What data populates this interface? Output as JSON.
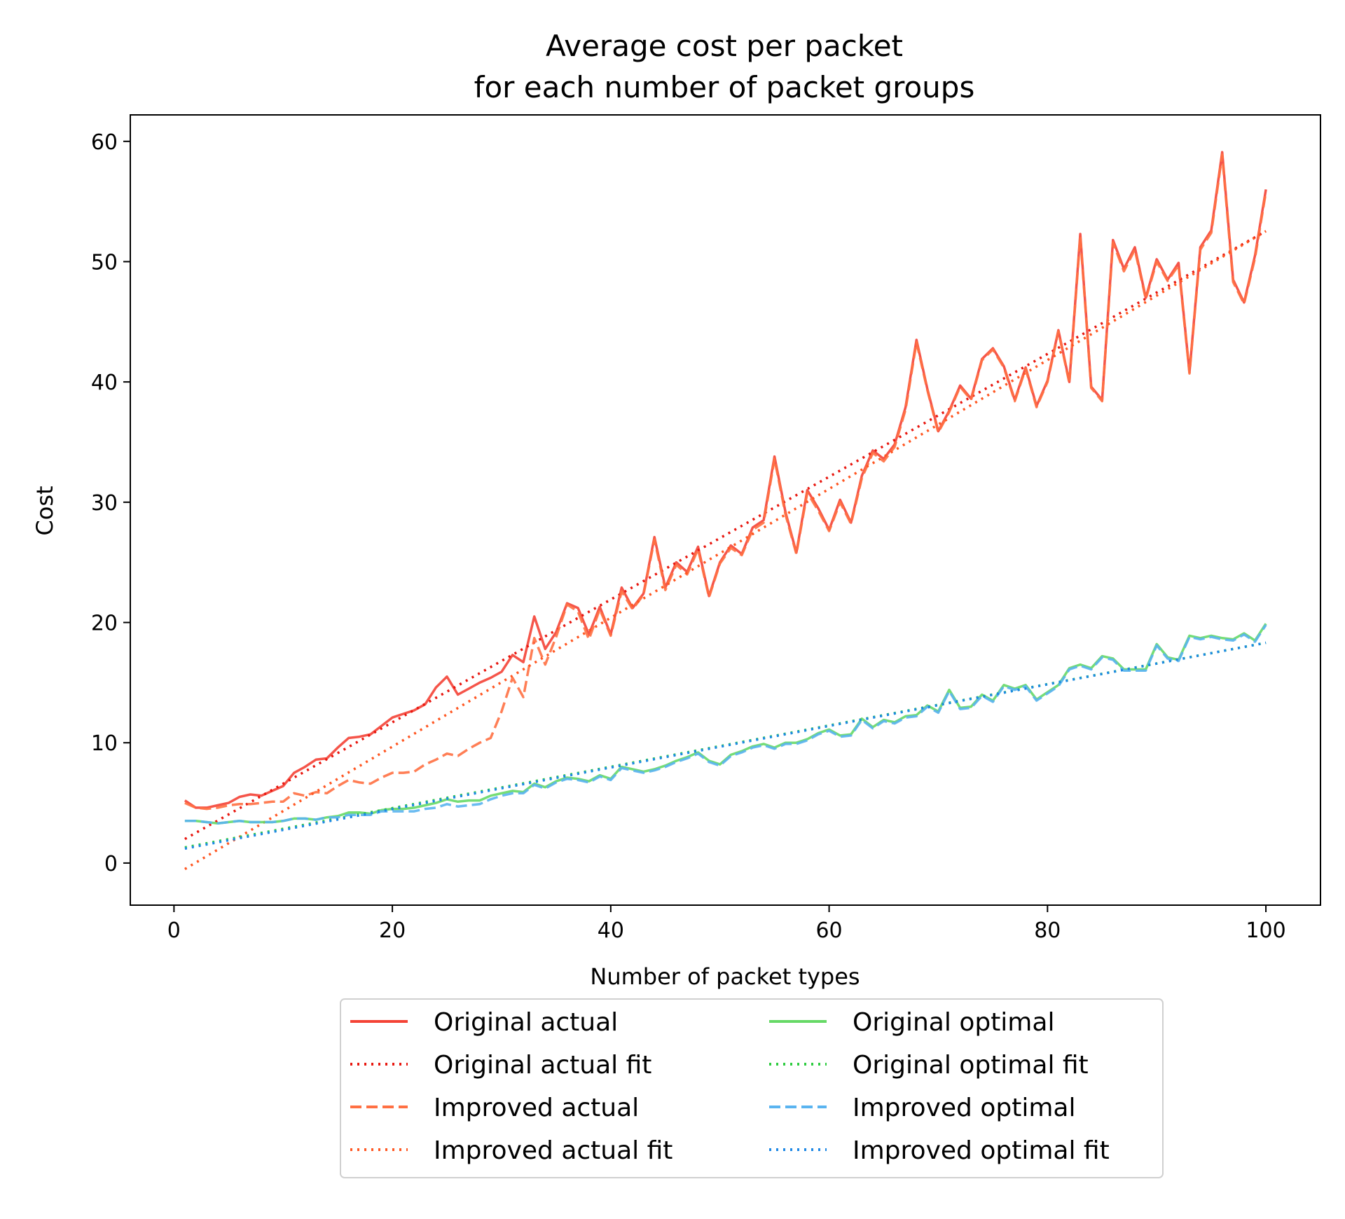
{
  "chart_data": {
    "type": "line",
    "title": [
      "Average cost per packet",
      "for each number of packet groups"
    ],
    "xlabel": "Number of packet types",
    "ylabel": "Cost",
    "xlim": [
      -4,
      105
    ],
    "ylim": [
      -3.5,
      62.2
    ],
    "xticks": [
      0,
      20,
      40,
      60,
      80,
      100
    ],
    "yticks": [
      0,
      10,
      20,
      30,
      40,
      50,
      60
    ],
    "grid": false,
    "legend_placement": "below the plot, two columns",
    "x_start": 1,
    "x_step": 1,
    "series": [
      {
        "name": "Original actual",
        "color": "#f44336",
        "dash": "solid",
        "values": [
          5.2,
          4.6,
          4.6,
          4.8,
          5.0,
          5.5,
          5.7,
          5.6,
          6.0,
          6.4,
          7.5,
          8.0,
          8.6,
          8.7,
          9.6,
          10.4,
          10.5,
          10.7,
          11.4,
          12.1,
          12.4,
          12.7,
          13.2,
          14.6,
          15.5,
          14.0,
          14.5,
          15.0,
          15.4,
          15.9,
          17.3,
          16.7,
          20.5,
          17.8,
          19.2,
          21.6,
          21.2,
          19.0,
          21.3,
          19.0,
          22.9,
          21.2,
          22.4,
          27.1,
          22.9,
          25.0,
          24.2,
          26.3,
          22.2,
          25.0,
          26.4,
          25.7,
          27.9,
          28.5,
          33.8,
          29.2,
          25.8,
          31.0,
          29.5,
          27.7,
          30.2,
          28.3,
          32.2,
          34.3,
          33.6,
          34.8,
          37.9,
          43.5,
          39.4,
          35.9,
          37.6,
          39.7,
          38.6,
          41.9,
          42.8,
          41.3,
          38.5,
          41.2,
          38.0,
          40.1,
          44.3,
          40.0,
          52.3,
          39.6,
          38.5,
          51.8,
          49.4,
          51.2,
          47.0,
          50.2,
          48.5,
          49.9,
          40.8,
          51.2,
          52.6,
          59.1,
          48.5,
          46.6,
          50.5,
          56.0
        ]
      },
      {
        "name": "Original actual fit",
        "color": "#e8170f",
        "dash": "dotted",
        "fit": [
          0.0,
          2.0,
          0.5054,
          52.54
        ]
      },
      {
        "name": "Improved actual",
        "color": "#ff7043",
        "dash": "dashed",
        "values": [
          5.0,
          4.6,
          4.5,
          4.6,
          4.8,
          4.9,
          4.9,
          5.0,
          5.1,
          5.1,
          5.8,
          5.6,
          5.9,
          5.8,
          6.4,
          6.9,
          6.7,
          6.6,
          7.1,
          7.5,
          7.5,
          7.6,
          8.2,
          8.6,
          9.1,
          8.9,
          9.5,
          10.0,
          10.4,
          12.6,
          15.4,
          13.8,
          18.7,
          16.5,
          18.8,
          21.5,
          20.9,
          18.6,
          21.1,
          18.9,
          22.6,
          21.1,
          22.3,
          26.9,
          22.7,
          24.8,
          24.0,
          26.1,
          22.1,
          24.9,
          26.2,
          25.6,
          27.7,
          28.3,
          33.6,
          29.0,
          25.7,
          30.8,
          29.3,
          27.6,
          30.0,
          28.2,
          32.0,
          34.1,
          33.4,
          34.6,
          37.7,
          43.3,
          39.3,
          35.8,
          37.5,
          39.6,
          38.5,
          41.8,
          42.7,
          41.2,
          38.4,
          41.1,
          37.9,
          40.0,
          44.2,
          39.9,
          52.1,
          39.5,
          38.4,
          51.6,
          49.2,
          51.0,
          46.9,
          50.0,
          48.4,
          49.7,
          40.7,
          51.0,
          52.4,
          58.9,
          48.3,
          46.5,
          50.3,
          55.8
        ]
      },
      {
        "name": "Improved actual fit",
        "color": "#ff5722",
        "dash": "dotted",
        "fit": [
          0.0,
          -0.5,
          0.5311,
          52.53
        ]
      },
      {
        "name": "Original optimal",
        "color": "#66d966",
        "dash": "solid",
        "values": [
          3.5,
          3.5,
          3.4,
          3.3,
          3.4,
          3.5,
          3.4,
          3.4,
          3.4,
          3.5,
          3.7,
          3.7,
          3.6,
          3.8,
          3.9,
          4.2,
          4.2,
          4.1,
          4.4,
          4.5,
          4.5,
          4.6,
          4.8,
          5.0,
          5.3,
          5.1,
          5.2,
          5.2,
          5.6,
          5.8,
          6.0,
          5.9,
          6.6,
          6.3,
          6.8,
          7.1,
          7.0,
          6.8,
          7.3,
          7.0,
          8.0,
          7.8,
          7.6,
          7.8,
          8.1,
          8.5,
          8.8,
          9.2,
          8.5,
          8.2,
          9.0,
          9.3,
          9.7,
          9.9,
          9.6,
          10.0,
          10.0,
          10.3,
          10.8,
          11.1,
          10.6,
          10.7,
          12.0,
          11.3,
          11.9,
          11.7,
          12.2,
          12.3,
          13.1,
          12.6,
          14.4,
          12.9,
          13.0,
          14.0,
          13.5,
          14.8,
          14.5,
          14.8,
          13.6,
          14.2,
          14.8,
          16.2,
          16.5,
          16.2,
          17.2,
          17.0,
          16.1,
          16.1,
          16.1,
          18.2,
          17.1,
          16.9,
          18.9,
          18.7,
          18.9,
          18.7,
          18.6,
          19.1,
          18.5,
          19.9
        ]
      },
      {
        "name": "Original optimal fit",
        "color": "#2ecc40",
        "dash": "dotted",
        "fit": [
          0.0,
          1.3,
          0.1718,
          18.31
        ]
      },
      {
        "name": "Improved optimal",
        "color": "#5ab4f0",
        "dash": "dashed",
        "values": [
          3.5,
          3.5,
          3.4,
          3.3,
          3.4,
          3.5,
          3.4,
          3.4,
          3.4,
          3.5,
          3.7,
          3.7,
          3.6,
          3.8,
          3.8,
          4.0,
          4.0,
          4.0,
          4.3,
          4.3,
          4.3,
          4.3,
          4.5,
          4.6,
          4.9,
          4.7,
          4.8,
          4.9,
          5.3,
          5.6,
          5.8,
          5.8,
          6.5,
          6.2,
          6.7,
          7.0,
          6.9,
          6.7,
          7.2,
          6.9,
          7.9,
          7.7,
          7.5,
          7.7,
          8.0,
          8.4,
          8.7,
          9.1,
          8.4,
          8.1,
          8.9,
          9.2,
          9.6,
          9.8,
          9.5,
          9.9,
          9.9,
          10.2,
          10.7,
          11.0,
          10.5,
          10.6,
          11.9,
          11.2,
          11.8,
          11.6,
          12.1,
          12.2,
          13.0,
          12.5,
          14.3,
          12.8,
          12.9,
          13.9,
          13.4,
          14.7,
          14.4,
          14.7,
          13.5,
          14.1,
          14.7,
          16.1,
          16.4,
          16.1,
          17.1,
          16.9,
          16.0,
          16.0,
          16.0,
          18.1,
          17.0,
          16.8,
          18.8,
          18.6,
          18.8,
          18.6,
          18.5,
          19.0,
          18.4,
          19.8
        ]
      },
      {
        "name": "Improved optimal fit",
        "color": "#1e88e5",
        "dash": "dotted",
        "fit": [
          0.0,
          1.2,
          0.1728,
          18.31
        ]
      }
    ]
  }
}
